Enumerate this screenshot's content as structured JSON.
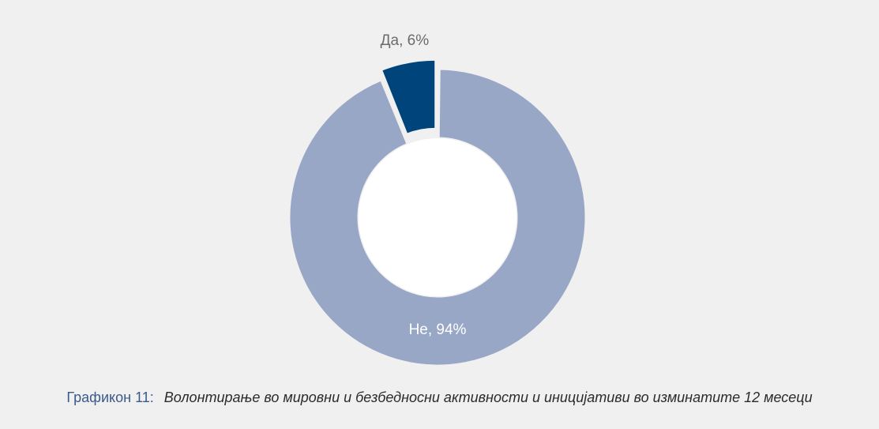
{
  "chart_data": {
    "type": "pie",
    "donut": true,
    "slices": [
      {
        "label": "Да, 6%",
        "value": 6,
        "color": "#00447c",
        "exploded": true,
        "label_color": "#6b6b6b"
      },
      {
        "label": "Не, 94%",
        "value": 94,
        "color": "#99a7c6",
        "exploded": false,
        "label_color": "#ffffff"
      }
    ],
    "background": "#f0f0f0",
    "hole_color": "#ffffff"
  },
  "caption": {
    "prefix": "Графикон 11:",
    "text": "Волонтирање во мировни и безбедносни активности и иницијативи во изминатите 12 месеци"
  }
}
